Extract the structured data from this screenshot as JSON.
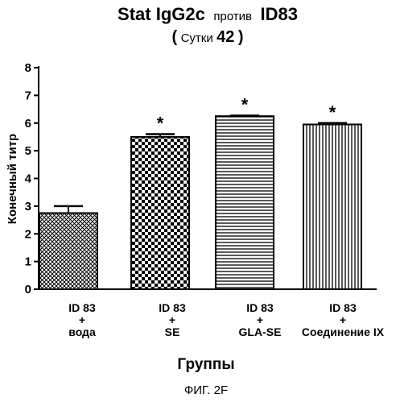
{
  "chart_data": {
    "type": "bar",
    "title_main": "Stat IgG2c",
    "title_mid": "против",
    "title_end": "ID83",
    "subtitle_open": "(",
    "subtitle_word": "Сутки",
    "subtitle_num": "42",
    "subtitle_close": ")",
    "ylabel": "Конечный титр",
    "xlabel": "Группы",
    "ylim": [
      0,
      8
    ],
    "yticks": [
      "0",
      "1",
      "2",
      "3",
      "4",
      "5",
      "6",
      "7",
      "8"
    ],
    "categories": [
      {
        "line1": "ID 83",
        "line2": "+",
        "line3": "вода"
      },
      {
        "line1": "ID 83",
        "line2": "+",
        "line3": "SE"
      },
      {
        "line1": "ID 83",
        "line2": "+",
        "line3": "GLA-SE"
      },
      {
        "line1": "ID 83",
        "line2": "+",
        "line3": "Соединение IX"
      }
    ],
    "values": [
      2.75,
      5.5,
      6.25,
      5.95
    ],
    "errors": [
      0.25,
      0.1,
      0.02,
      0.05
    ],
    "significance": [
      "",
      "*",
      "*",
      "*"
    ],
    "patterns": [
      "crosshatch-fine",
      "checker",
      "horizontal-lines",
      "vertical-lines"
    ],
    "grid": false
  },
  "caption": "ФИГ. 2F"
}
